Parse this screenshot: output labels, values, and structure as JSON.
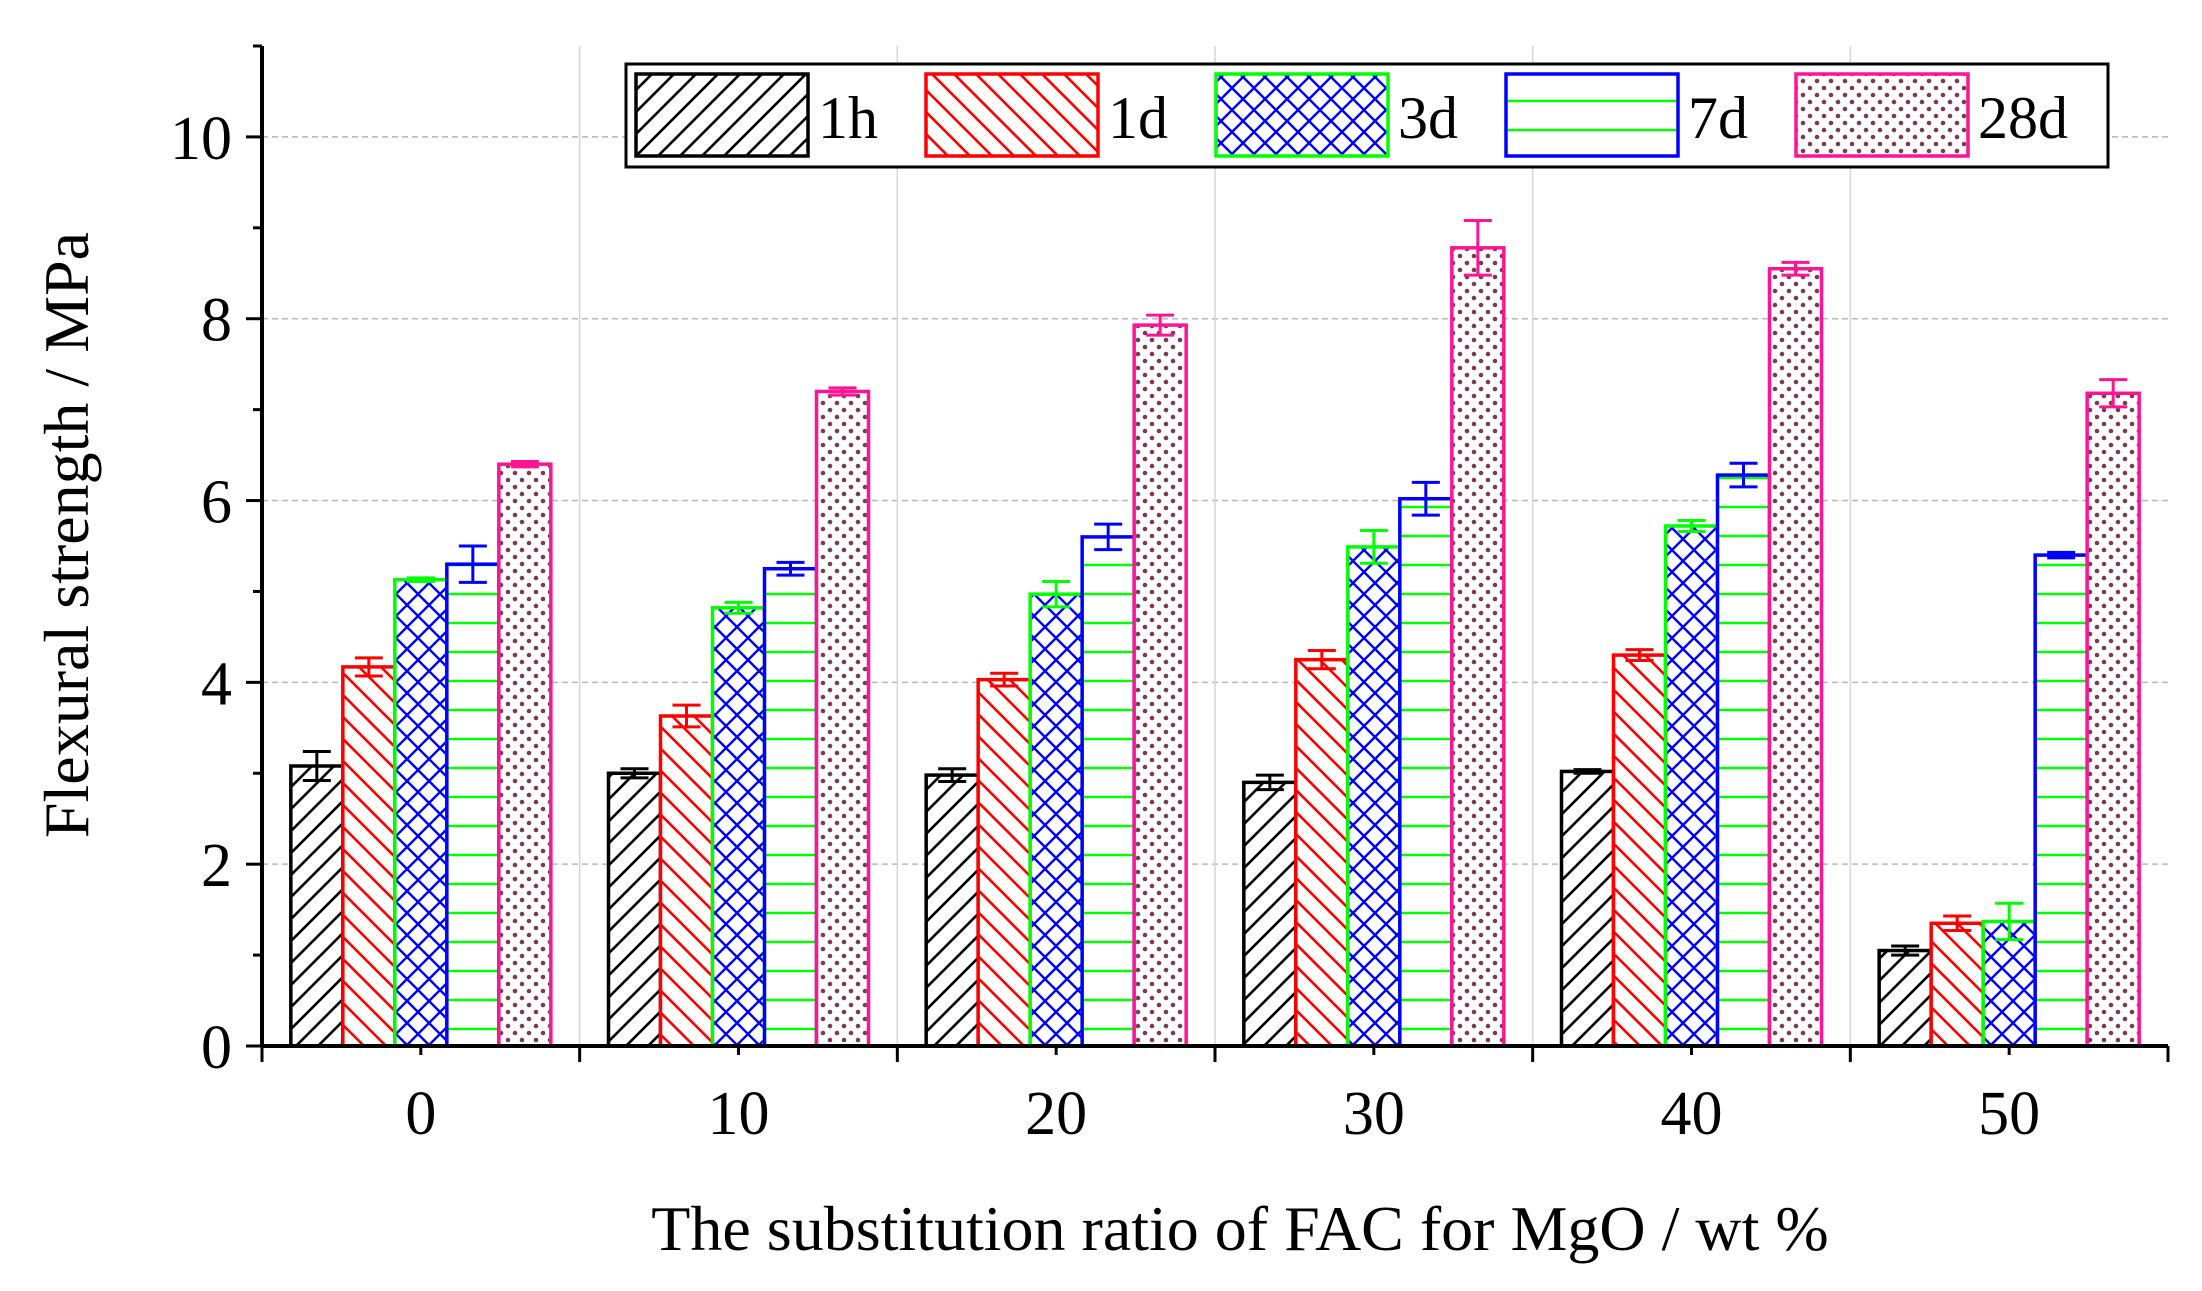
{
  "chart_data": {
    "type": "bar",
    "title": "",
    "xlabel": "The substitution ratio of FAC for MgO / wt %",
    "ylabel": "Flexural strength / MPa",
    "ylim": [
      0,
      11
    ],
    "yticks": [
      0,
      2,
      4,
      6,
      8,
      10
    ],
    "grid": true,
    "legend_position": "top-right",
    "categories": [
      "0",
      "10",
      "20",
      "30",
      "40",
      "50"
    ],
    "series": [
      {
        "name": "1h",
        "color": "#000000",
        "pattern": "diagonal-up",
        "values": [
          3.08,
          3.0,
          2.98,
          2.9,
          3.02,
          1.05
        ],
        "errors": [
          0.16,
          0.05,
          0.07,
          0.08,
          0.02,
          0.05
        ]
      },
      {
        "name": "1d",
        "color": "#ff0000",
        "pattern": "diagonal-down",
        "values": [
          4.17,
          3.63,
          4.03,
          4.25,
          4.3,
          1.35
        ],
        "errors": [
          0.1,
          0.12,
          0.07,
          0.1,
          0.06,
          0.08
        ]
      },
      {
        "name": "3d",
        "color": "#0000ff",
        "pattern": "crosshatch",
        "border": "#00ff00",
        "values": [
          5.13,
          4.82,
          4.97,
          5.49,
          5.72,
          1.37
        ],
        "errors": [
          0.02,
          0.06,
          0.14,
          0.18,
          0.06,
          0.2
        ]
      },
      {
        "name": "7d",
        "color": "#00ff00",
        "pattern": "horizontal",
        "border": "#0000ff",
        "values": [
          5.3,
          5.25,
          5.6,
          6.02,
          6.28,
          5.4
        ],
        "errors": [
          0.2,
          0.07,
          0.14,
          0.18,
          0.13,
          0.03
        ]
      },
      {
        "name": "28d",
        "color": "#ff1493",
        "pattern": "dots",
        "dot_color": "#7a3b52",
        "values": [
          6.4,
          7.2,
          7.93,
          8.78,
          8.55,
          7.18
        ],
        "errors": [
          0.03,
          0.04,
          0.11,
          0.3,
          0.07,
          0.15
        ]
      }
    ]
  }
}
